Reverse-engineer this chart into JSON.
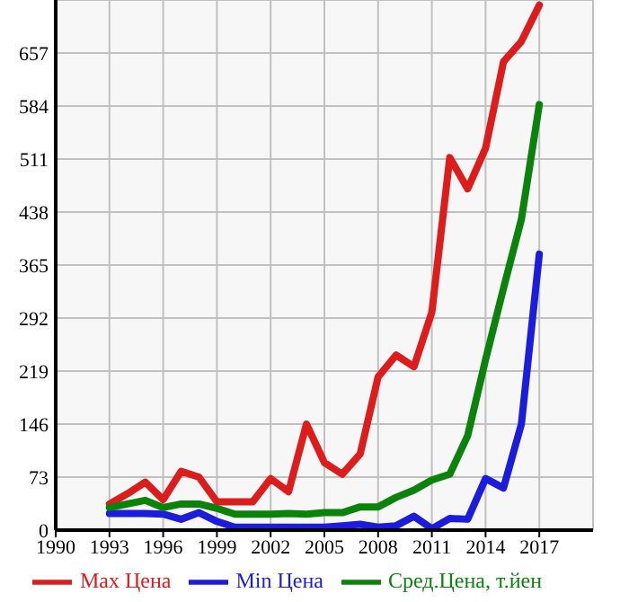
{
  "chart_data": {
    "type": "line",
    "x": [
      1993,
      1994,
      1995,
      1996,
      1997,
      1998,
      1999,
      2000,
      2001,
      2002,
      2003,
      2004,
      2005,
      2006,
      2007,
      2008,
      2009,
      2010,
      2011,
      2012,
      2013,
      2014,
      2015,
      2016,
      2017
    ],
    "series": [
      {
        "name": "Max Цена",
        "color": "#dd1c1c",
        "values": [
          36,
          50,
          66,
          42,
          81,
          73,
          39,
          39,
          39,
          71,
          53,
          146,
          93,
          77,
          105,
          211,
          241,
          225,
          300,
          513,
          470,
          526,
          645,
          673,
          723
        ]
      },
      {
        "name": "Min Цена",
        "color": "#1c1cdd",
        "values": [
          23,
          23,
          23,
          22,
          15,
          24,
          12,
          4,
          4,
          4,
          4,
          4,
          4,
          6,
          8,
          4,
          6,
          19,
          2,
          16,
          15,
          71,
          58,
          146,
          380
        ]
      },
      {
        "name": "Сред.Цена, т.йен",
        "color": "#0b830b",
        "values": [
          31,
          36,
          41,
          31,
          36,
          36,
          30,
          22,
          22,
          22,
          23,
          22,
          24,
          24,
          32,
          32,
          45,
          55,
          69,
          77,
          130,
          235,
          333,
          428,
          586
        ]
      }
    ],
    "xlim": [
      1990,
      2020
    ],
    "xticks": [
      1990,
      1993,
      1996,
      1999,
      2002,
      2005,
      2008,
      2011,
      2014,
      2017
    ],
    "ylim": [
      0,
      730
    ],
    "yticks": [
      0,
      73,
      146,
      219,
      292,
      365,
      438,
      511,
      584,
      657
    ],
    "grid": true,
    "legend": "bottom",
    "marker": "none",
    "line_style": "solid"
  }
}
